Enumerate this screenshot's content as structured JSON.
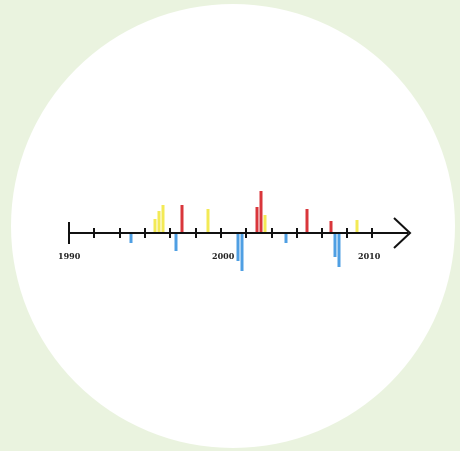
{
  "timeline": {
    "labels": [
      "1990",
      "2000",
      "2010"
    ],
    "colors": {
      "background": "#eaf3df",
      "circle": "#ffffff",
      "axis": "#111111",
      "red": "#d9363b",
      "yellow": "#f3ea55",
      "blue": "#4f9fe3"
    }
  }
}
